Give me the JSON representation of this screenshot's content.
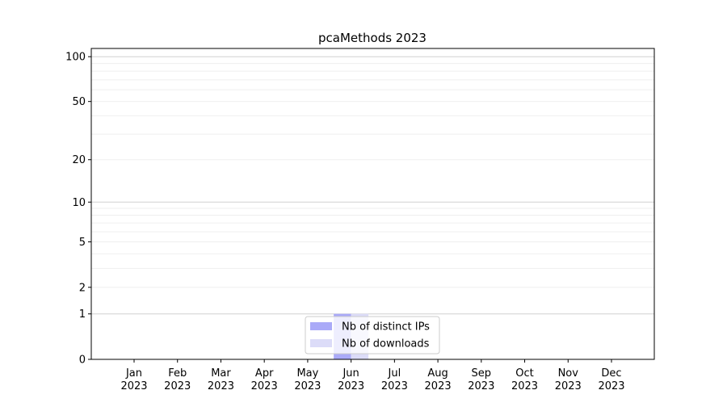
{
  "chart_data": {
    "type": "bar",
    "title": "pcaMethods 2023",
    "xlabel": "",
    "ylabel": "",
    "y_scale": "log(1+y)",
    "ylim": [
      0,
      110
    ],
    "y_ticks": [
      0,
      1,
      2,
      5,
      10,
      20,
      50,
      100
    ],
    "grid": true,
    "legend_placement": "lower-center",
    "categories": [
      "Jan\n2023",
      "Feb\n2023",
      "Mar\n2023",
      "Apr\n2023",
      "May\n2023",
      "Jun\n2023",
      "Jul\n2023",
      "Aug\n2023",
      "Sep\n2023",
      "Oct\n2023",
      "Nov\n2023",
      "Dec\n2023"
    ],
    "series": [
      {
        "name": "Nb of distinct IPs",
        "color": "#aaaaf8",
        "values": [
          0,
          0,
          0,
          0,
          0,
          1,
          0,
          0,
          0,
          0,
          0,
          0
        ]
      },
      {
        "name": "Nb of downloads",
        "color": "#dcdcf8",
        "values": [
          0,
          0,
          0,
          0,
          0,
          1,
          0,
          0,
          0,
          0,
          0,
          0
        ]
      }
    ]
  }
}
